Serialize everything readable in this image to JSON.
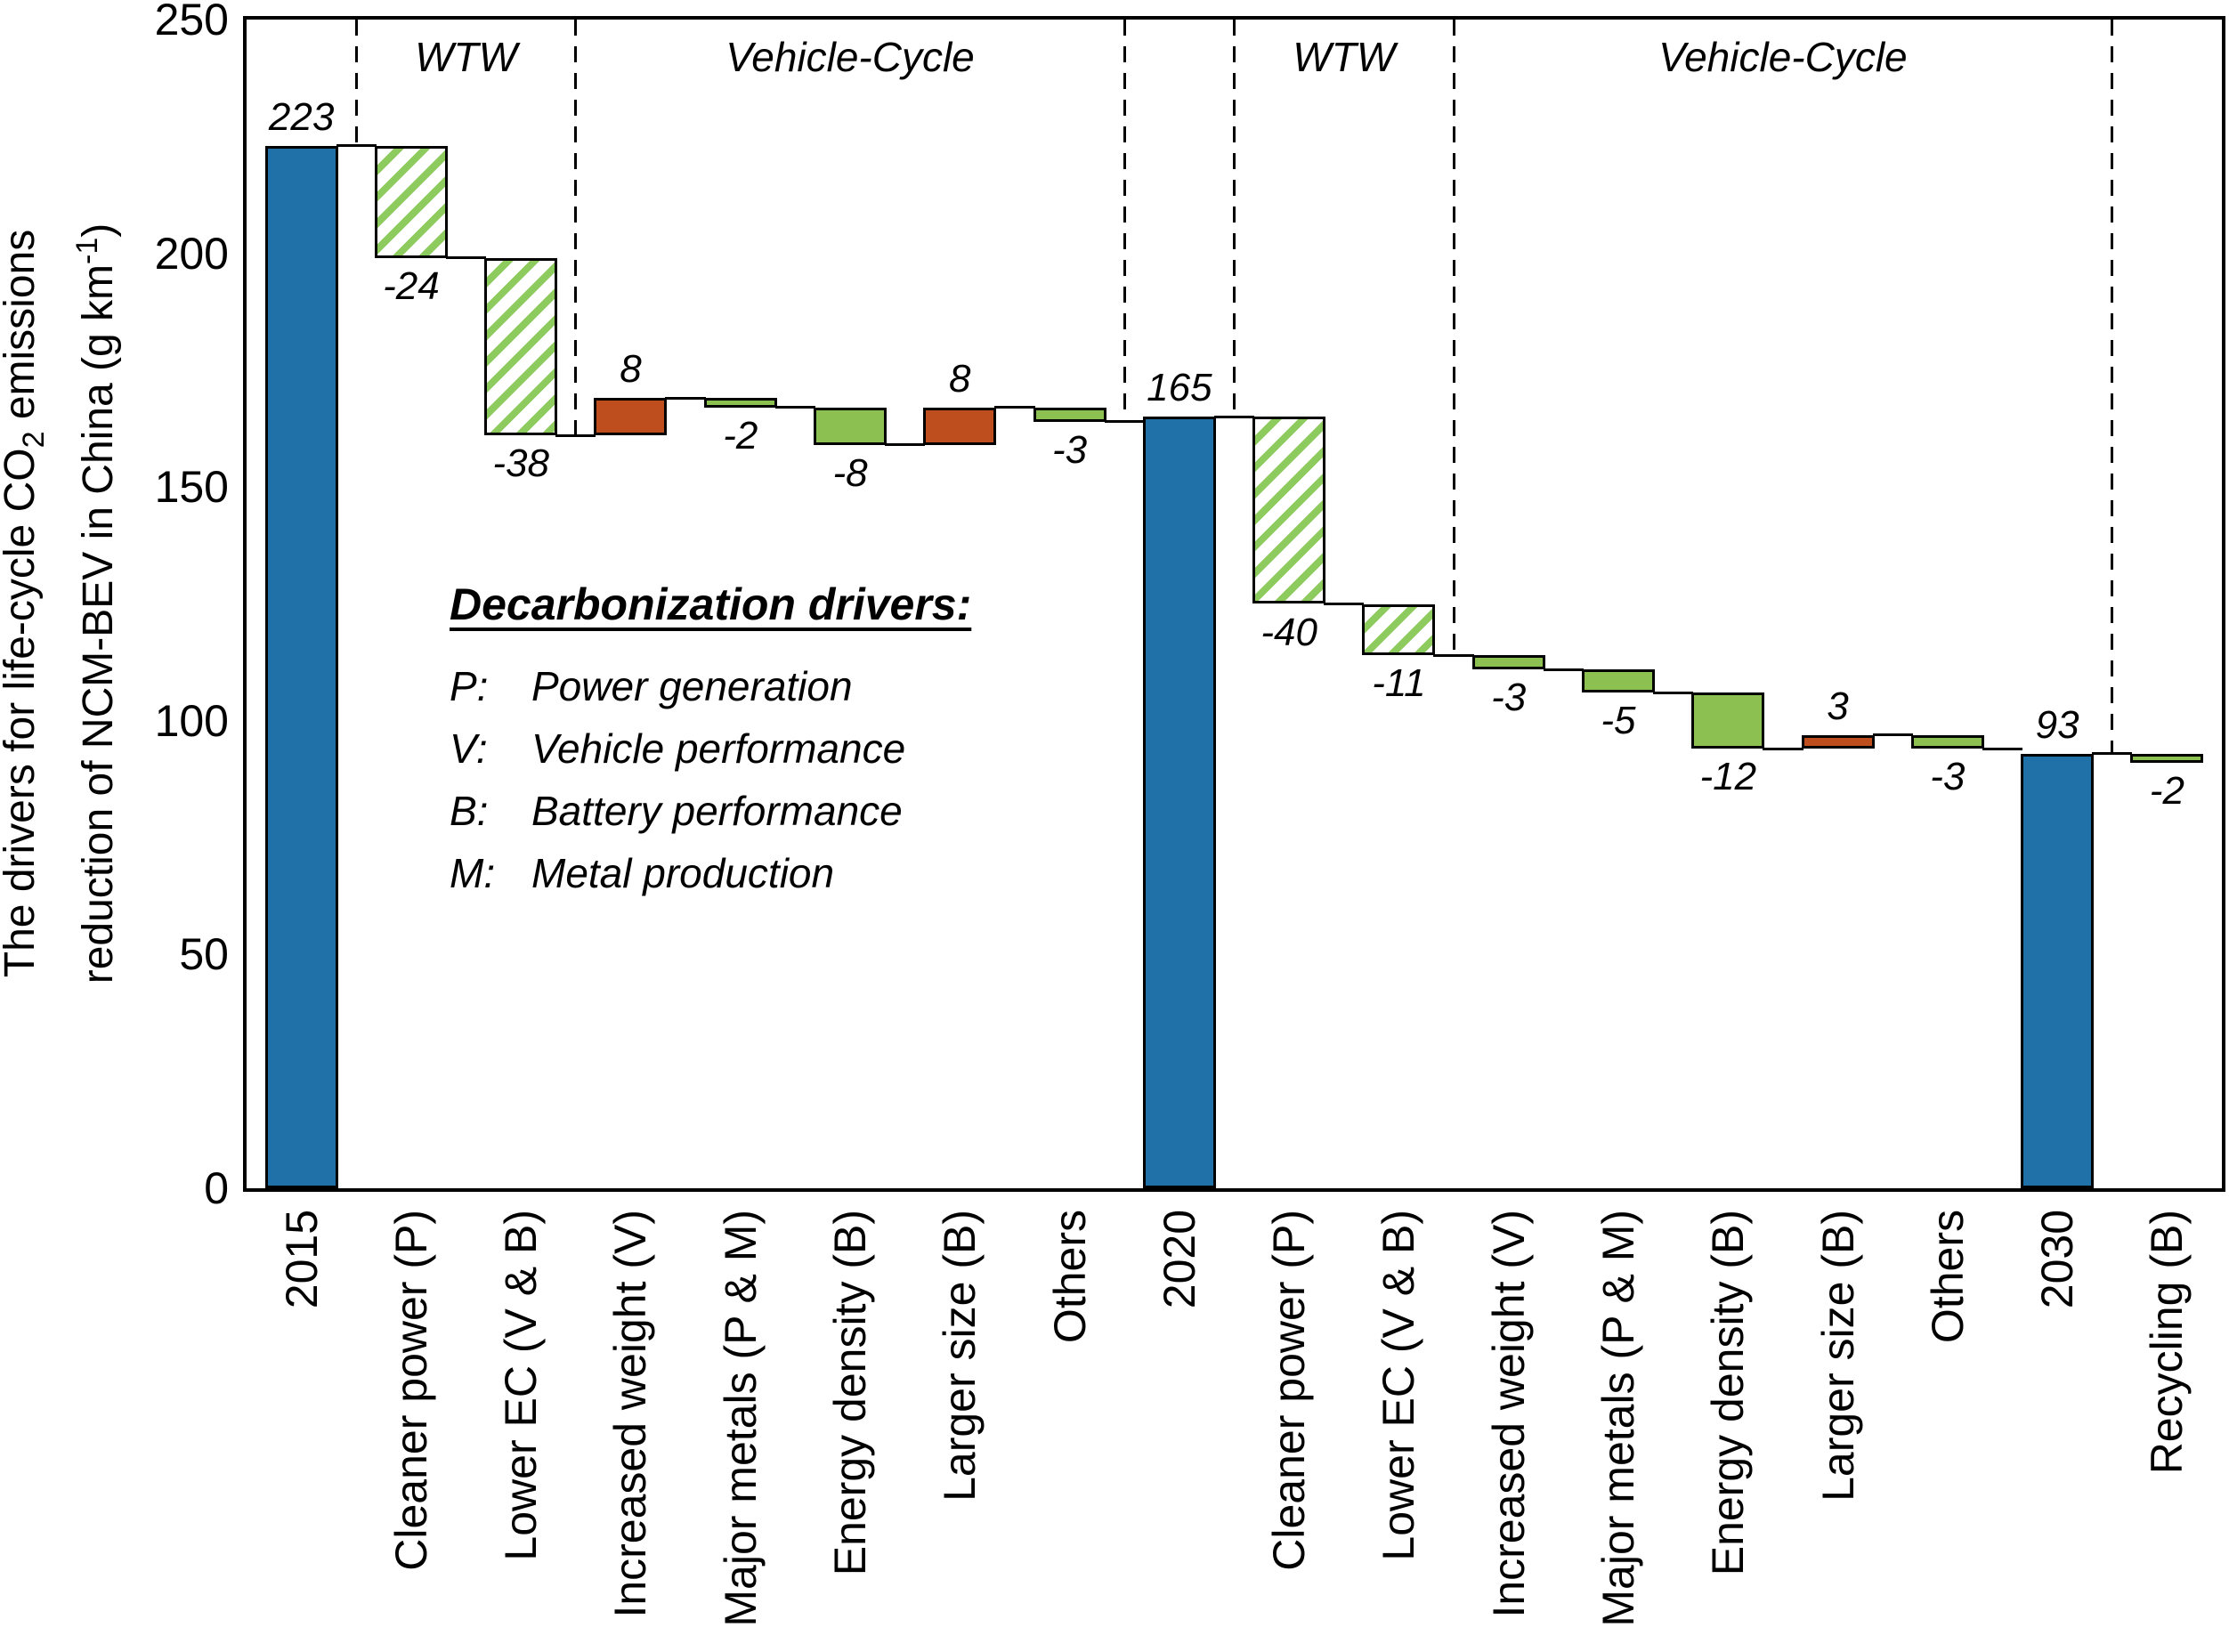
{
  "chart_data": {
    "type": "bar",
    "subtype": "waterfall",
    "title": "",
    "ylabel_line1": [
      "The drivers for life-cycle CO",
      "2",
      " emissions"
    ],
    "ylabel_line2": [
      "reduction of NCM-BEV in China (g km",
      "-1",
      ")"
    ],
    "ylim": [
      0,
      250
    ],
    "yticks": [
      "0",
      "50",
      "100",
      "150",
      "200",
      "250"
    ],
    "grid": "off",
    "legend_position": "none",
    "sections": [
      {
        "label": "WTW",
        "from": 1,
        "to": 3
      },
      {
        "label": "Vehicle-Cycle",
        "from": 3,
        "to": 8
      },
      {
        "label": "WTW",
        "from": 9,
        "to": 11
      },
      {
        "label": "Vehicle-Cycle",
        "from": 11,
        "to": 17
      }
    ],
    "separators": [
      {
        "k": 1,
        "level": 223
      },
      {
        "k": 3,
        "level": 161
      },
      {
        "k": 8,
        "level": 164
      },
      {
        "k": 9,
        "level": 165
      },
      {
        "k": 11,
        "level": 114
      },
      {
        "k": 17,
        "level": 93
      }
    ],
    "bars": [
      {
        "category": "2015",
        "value_label": "223",
        "value": 223,
        "start": 0,
        "end": 223,
        "kind": "total"
      },
      {
        "category": "Cleaner power (P)",
        "value_label": "-24",
        "value": -24,
        "start": 223,
        "end": 199,
        "kind": "hatched"
      },
      {
        "category": "Lower EC (V & B)",
        "value_label": "-38",
        "value": -38,
        "start": 199,
        "end": 161,
        "kind": "hatched"
      },
      {
        "category": "Increased weight (V)",
        "value_label": "8",
        "value": 8,
        "start": 161,
        "end": 169,
        "kind": "increase"
      },
      {
        "category": "Major metals (P & M)",
        "value_label": "-2",
        "value": -2,
        "start": 169,
        "end": 167,
        "kind": "decrease"
      },
      {
        "category": "Energy density (B)",
        "value_label": "-8",
        "value": -8,
        "start": 167,
        "end": 159,
        "kind": "decrease"
      },
      {
        "category": "Larger size (B)",
        "value_label": "8",
        "value": 8,
        "start": 159,
        "end": 167,
        "kind": "increase"
      },
      {
        "category": "Others",
        "value_label": "-3",
        "value": -3,
        "start": 167,
        "end": 164,
        "kind": "decrease"
      },
      {
        "category": "2020",
        "value_label": "165",
        "value": 165,
        "start": 0,
        "end": 165,
        "kind": "total"
      },
      {
        "category": "Cleaner power (P)",
        "value_label": "-40",
        "value": -40,
        "start": 165,
        "end": 125,
        "kind": "hatched"
      },
      {
        "category": "Lower EC (V & B)",
        "value_label": "-11",
        "value": -11,
        "start": 125,
        "end": 114,
        "kind": "hatched"
      },
      {
        "category": "Increased weight (V)",
        "value_label": "-3",
        "value": -3,
        "start": 114,
        "end": 111,
        "kind": "decrease"
      },
      {
        "category": "Major metals (P & M)",
        "value_label": "-5",
        "value": -5,
        "start": 111,
        "end": 106,
        "kind": "decrease"
      },
      {
        "category": "Energy density (B)",
        "value_label": "-12",
        "value": -12,
        "start": 106,
        "end": 94,
        "kind": "decrease"
      },
      {
        "category": "Larger size (B)",
        "value_label": "3",
        "value": 3,
        "start": 94,
        "end": 97,
        "kind": "increase"
      },
      {
        "category": "Others",
        "value_label": "-3",
        "value": -3,
        "start": 97,
        "end": 94,
        "kind": "decrease"
      },
      {
        "category": "2030",
        "value_label": "93",
        "value": 93,
        "start": 0,
        "end": 93,
        "kind": "total"
      },
      {
        "category": "Recycling (B)",
        "value_label": "-2",
        "value": -2,
        "start": 93,
        "end": 91,
        "kind": "decrease"
      }
    ],
    "colors": {
      "total": "#2171A9",
      "decrease": "#8CC152",
      "increase": "#BF4E1E",
      "hatch_stripe": "#8DCB5E",
      "line": "#000000"
    }
  },
  "legend": {
    "heading": "Decarbonization drivers:",
    "items": [
      {
        "key": "P:",
        "label": "Power generation"
      },
      {
        "key": "V:",
        "label": "Vehicle performance"
      },
      {
        "key": "B:",
        "label": "Battery performance"
      },
      {
        "key": "M:",
        "label": "Metal production"
      }
    ]
  }
}
